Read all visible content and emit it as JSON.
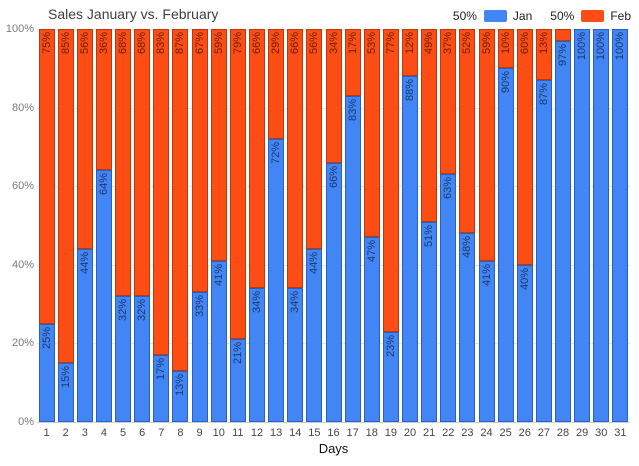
{
  "header": {
    "title": "Sales January vs. February"
  },
  "legend": {
    "items": [
      {
        "value": "50%",
        "label": "Jan",
        "color": "#4285f4"
      },
      {
        "value": "50%",
        "label": "Feb",
        "color": "#fb4d14"
      }
    ]
  },
  "axes": {
    "x_title": "Days",
    "y_ticks": [
      "0%",
      "20%",
      "40%",
      "60%",
      "80%",
      "100%"
    ],
    "x_ticks": [
      "1",
      "2",
      "3",
      "4",
      "5",
      "6",
      "7",
      "8",
      "9",
      "10",
      "11",
      "12",
      "13",
      "14",
      "15",
      "16",
      "17",
      "18",
      "19",
      "20",
      "21",
      "22",
      "23",
      "24",
      "25",
      "26",
      "27",
      "28",
      "29",
      "30",
      "31"
    ]
  },
  "chart_data": {
    "type": "bar",
    "stacked": true,
    "percent_stacked": true,
    "title": "Sales January vs. February",
    "xlabel": "Days",
    "ylabel": "",
    "ylim": [
      0,
      100
    ],
    "grid": true,
    "legend_position": "top-right",
    "categories": [
      1,
      2,
      3,
      4,
      5,
      6,
      7,
      8,
      9,
      10,
      11,
      12,
      13,
      14,
      15,
      16,
      17,
      18,
      19,
      20,
      21,
      22,
      23,
      24,
      25,
      26,
      27,
      28,
      29,
      30,
      31
    ],
    "series": [
      {
        "name": "Jan",
        "color": "#4285f4",
        "values": [
          25,
          15,
          44,
          64,
          32,
          32,
          17,
          13,
          33,
          41,
          21,
          34,
          72,
          34,
          44,
          66,
          83,
          47,
          23,
          88,
          51,
          63,
          48,
          41,
          90,
          40,
          87,
          97,
          100,
          100,
          100
        ],
        "labels": [
          "25%",
          "15%",
          "44%",
          "64%",
          "32%",
          "32%",
          "17%",
          "13%",
          "33%",
          "41%",
          "21%",
          "34%",
          "72%",
          "34%",
          "44%",
          "66%",
          "83%",
          "47%",
          "23%",
          "88%",
          "51%",
          "63%",
          "48%",
          "41%",
          "90%",
          "40%",
          "87%",
          "97%",
          "100%",
          "100%",
          "100%"
        ]
      },
      {
        "name": "Feb",
        "color": "#fb4d14",
        "values": [
          75,
          85,
          56,
          36,
          68,
          68,
          83,
          87,
          67,
          59,
          79,
          66,
          29,
          66,
          56,
          34,
          17,
          53,
          77,
          12,
          49,
          37,
          52,
          59,
          10,
          60,
          13,
          3,
          0,
          0,
          0
        ],
        "labels": [
          "75%",
          "85%",
          "56%",
          "36%",
          "68%",
          "68%",
          "83%",
          "87%",
          "67%",
          "59%",
          "79%",
          "66%",
          "29%",
          "66%",
          "56%",
          "34%",
          "17%",
          "53%",
          "77%",
          "12%",
          "49%",
          "37%",
          "52%",
          "59%",
          "10%",
          "60%",
          "13%",
          "",
          "",
          ""
        ]
      }
    ]
  }
}
